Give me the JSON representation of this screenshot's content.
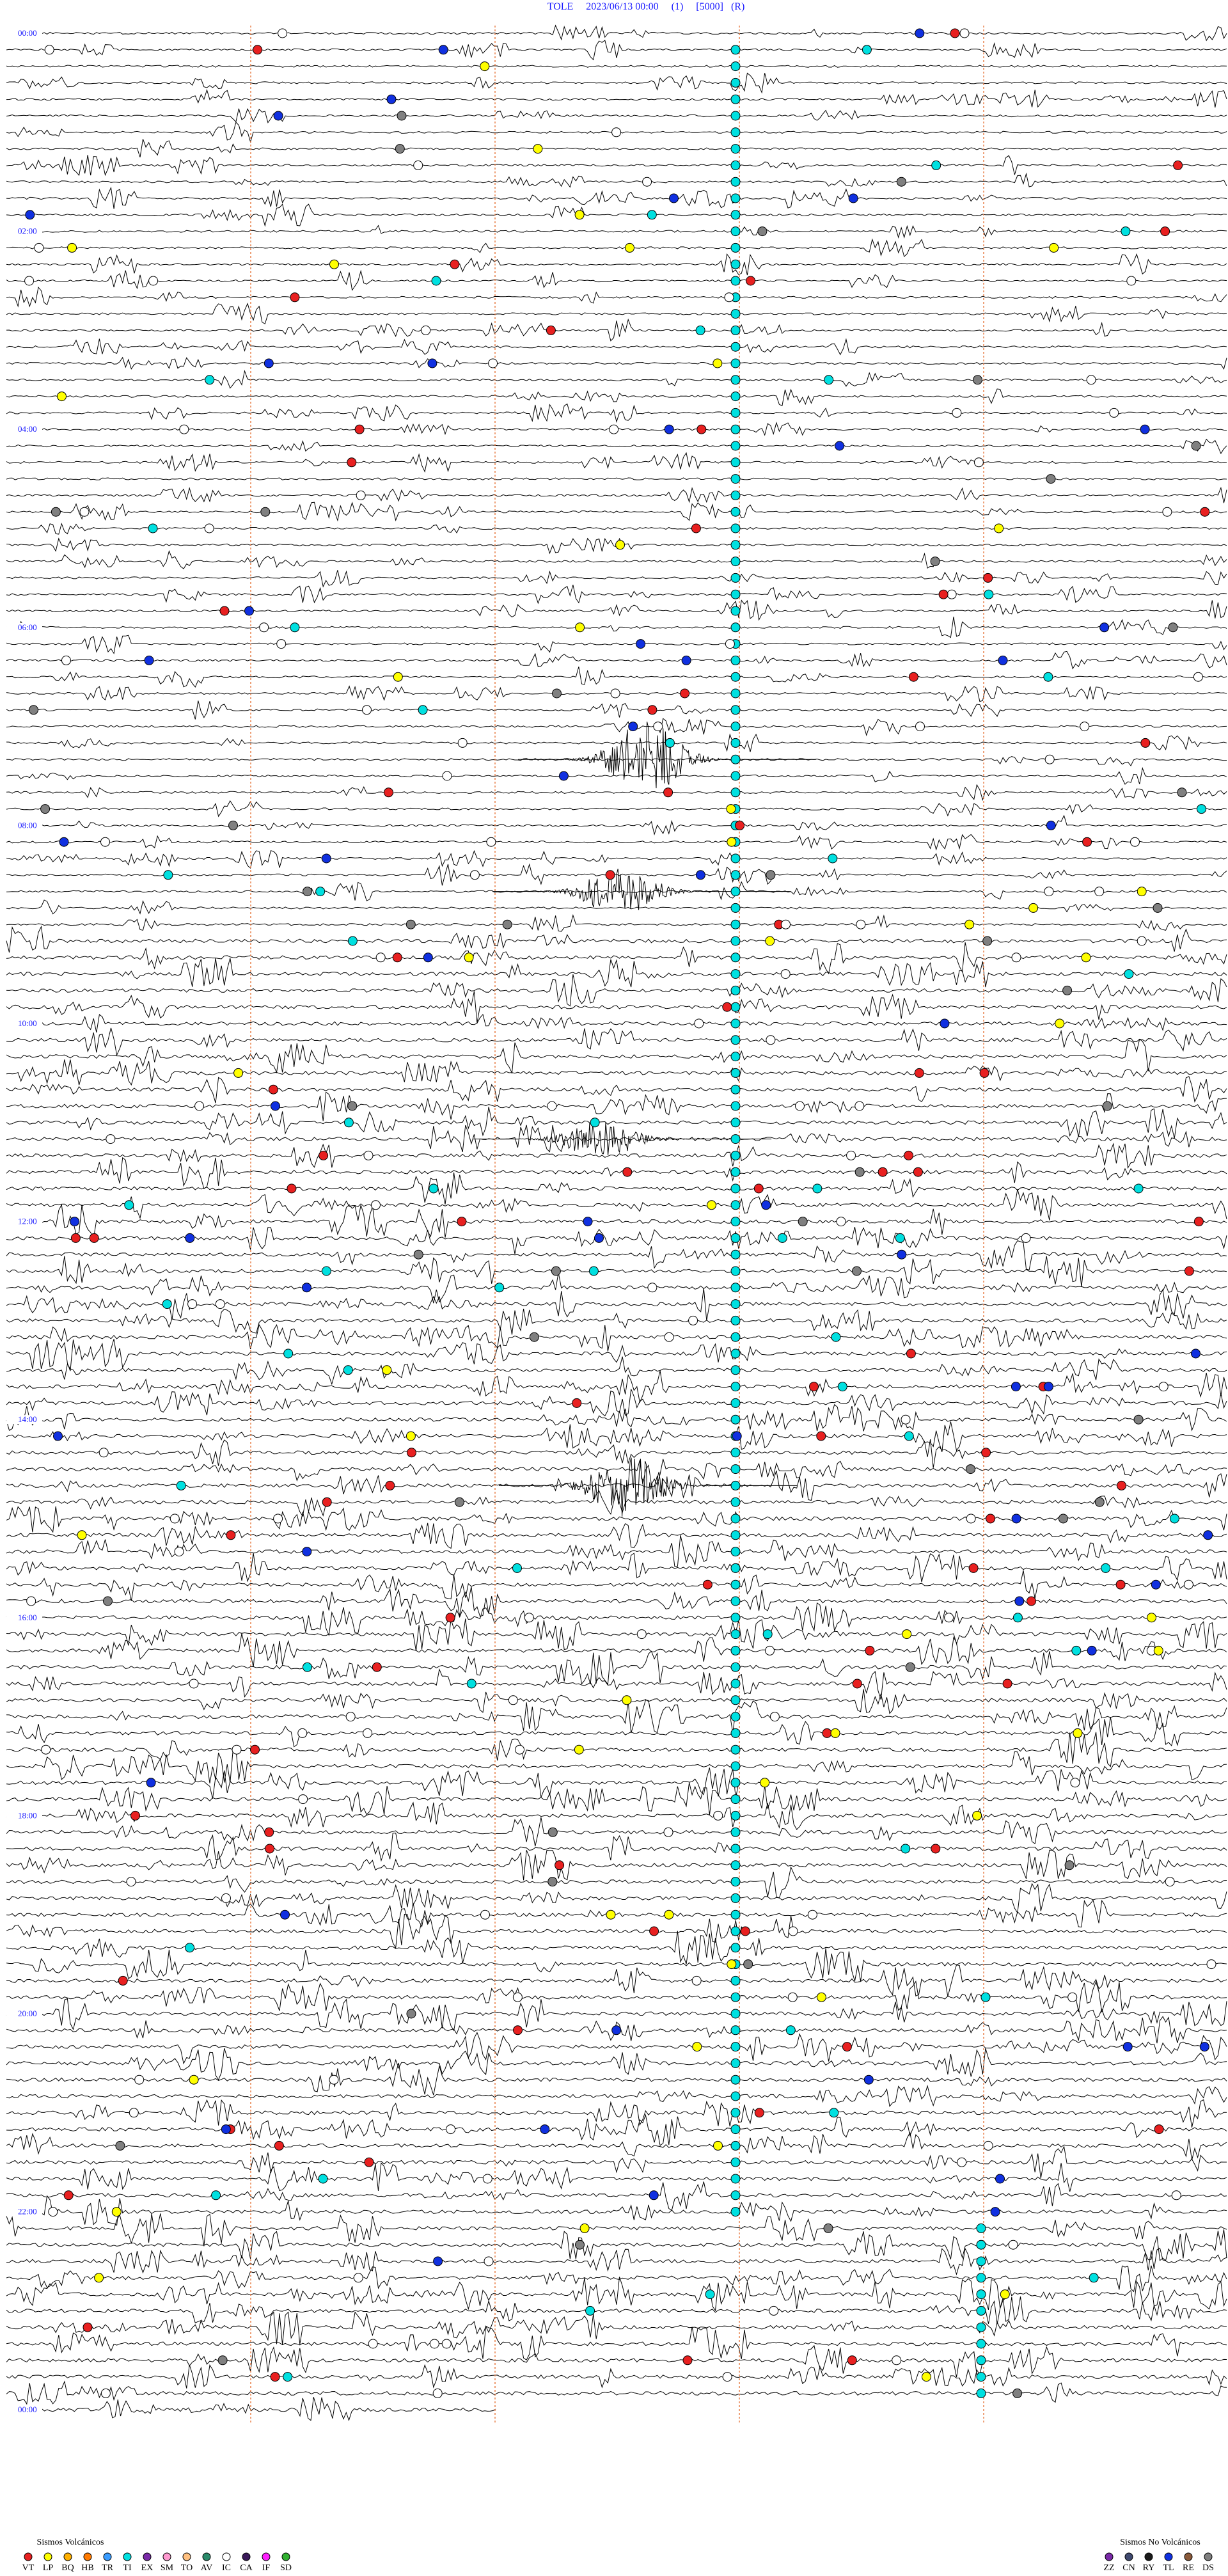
{
  "header": {
    "title": "TOLE     2023/06/13 00:00     (1)     [5000]   (R)"
  },
  "hour_labels": [
    "00:00",
    "02:00",
    "04:00",
    "06:00",
    "08:00",
    "10:00",
    "12:00",
    "14:00",
    "16:00",
    "18:00",
    "20:00",
    "22:00",
    "00:00"
  ],
  "legend": {
    "volcanic": {
      "title": "Sismos Volcánicos",
      "items": [
        {
          "code": "VT",
          "color": "#e82020"
        },
        {
          "code": "LP",
          "color": "#ffff00"
        },
        {
          "code": "BQ",
          "color": "#ffb000"
        },
        {
          "code": "HB",
          "color": "#ff7a00"
        },
        {
          "code": "TR",
          "color": "#3a9cff"
        },
        {
          "code": "TI",
          "color": "#00e0e0"
        },
        {
          "code": "EX",
          "color": "#7a2aa8"
        },
        {
          "code": "SM",
          "color": "#ff9ad0"
        },
        {
          "code": "TO",
          "color": "#ffc080"
        },
        {
          "code": "AV",
          "color": "#2a8a6a"
        },
        {
          "code": "IC",
          "color": "#ffffff"
        },
        {
          "code": "CA",
          "color": "#3a1a5a"
        },
        {
          "code": "IF",
          "color": "#ff20ff"
        },
        {
          "code": "SD",
          "color": "#30b030"
        }
      ]
    },
    "non_volcanic": {
      "title": "Sismos No Volcánicos",
      "items": [
        {
          "code": "ZZ",
          "color": "#7a2aa8"
        },
        {
          "code": "CN",
          "color": "#404a70"
        },
        {
          "code": "RY",
          "color": "#1a1a1a"
        },
        {
          "code": "TL",
          "color": "#1030e0"
        },
        {
          "code": "RE",
          "color": "#8a5a3a"
        },
        {
          "code": "DS",
          "color": "#808080"
        }
      ]
    }
  }
}
